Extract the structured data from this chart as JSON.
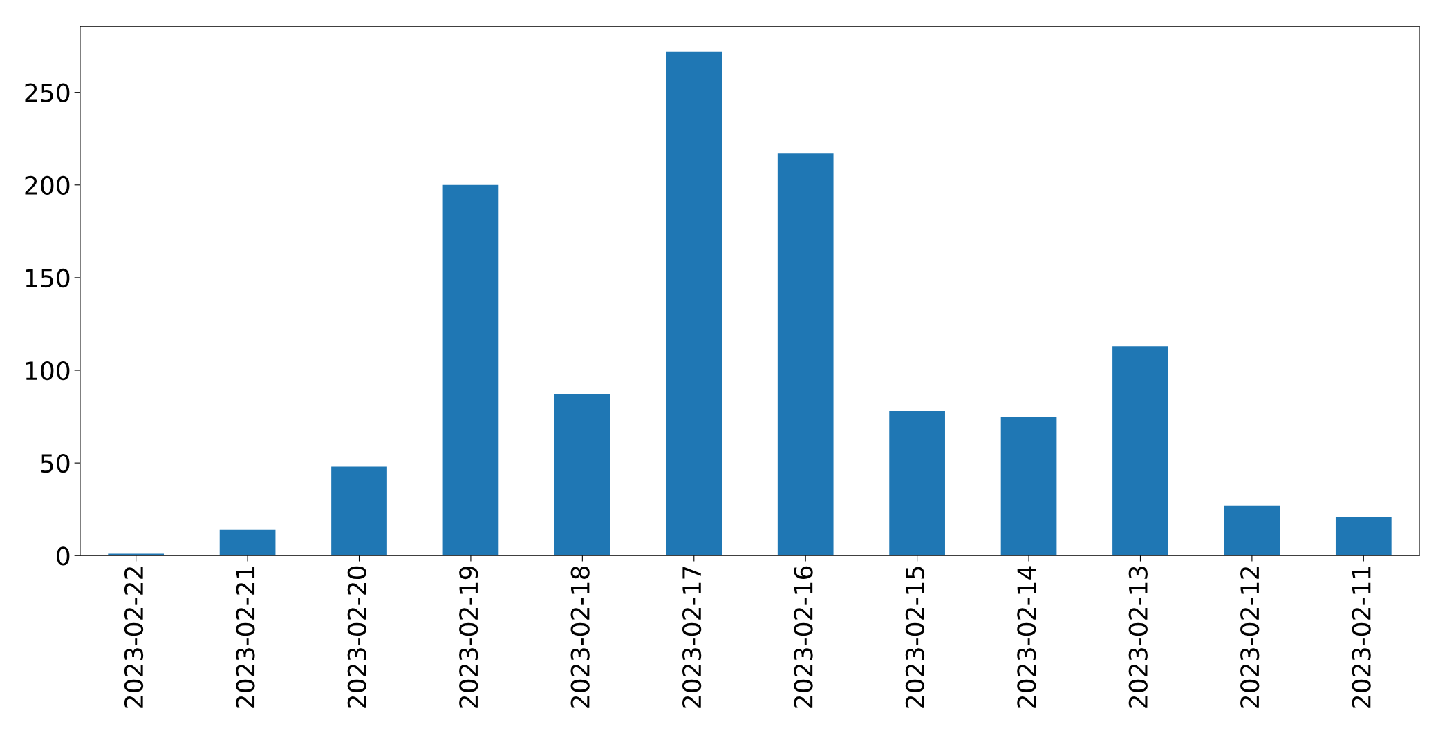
{
  "chart_data": {
    "type": "bar",
    "categories": [
      "2023-02-22",
      "2023-02-21",
      "2023-02-20",
      "2023-02-19",
      "2023-02-18",
      "2023-02-17",
      "2023-02-16",
      "2023-02-15",
      "2023-02-14",
      "2023-02-13",
      "2023-02-12",
      "2023-02-11"
    ],
    "values": [
      1,
      14,
      48,
      200,
      87,
      272,
      217,
      78,
      75,
      113,
      27,
      21
    ],
    "color": "#1f77b4",
    "ylim": [
      0,
      285.6
    ],
    "yticks": [
      0,
      50,
      100,
      150,
      200,
      250
    ],
    "grid": false,
    "legend": false
  }
}
